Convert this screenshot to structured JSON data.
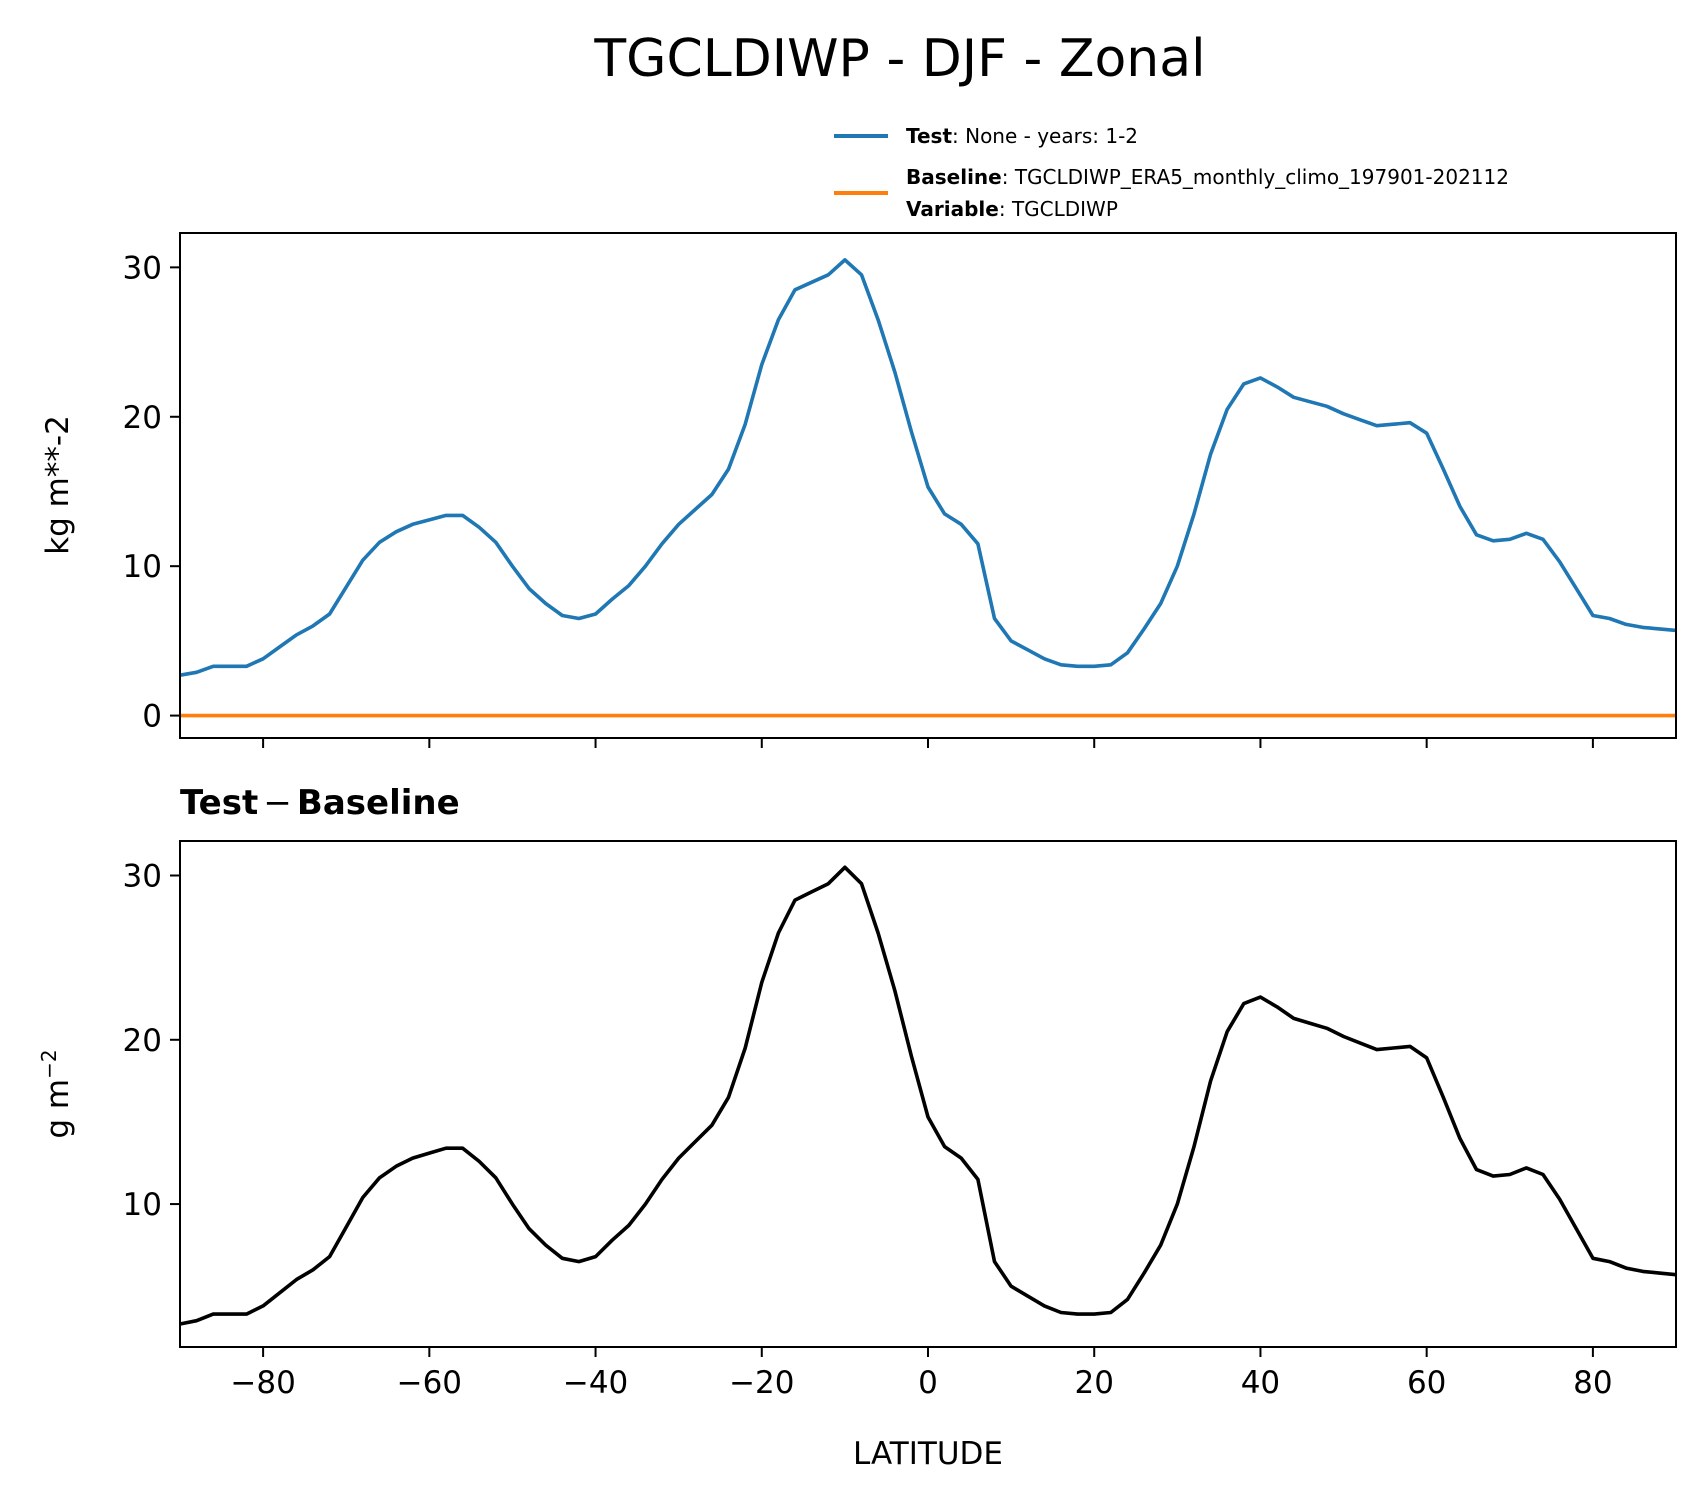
{
  "figure": {
    "title": "TGCLDIWP - DJF - Zonal",
    "legend": [
      {
        "bold": "Test",
        "rest": ": None - years: 1-2",
        "color": "#1f77b4"
      },
      {
        "bold": "Baseline",
        "rest": ": TGCLDIWP_ERA5_monthly_climo_197901-202112",
        "bold2": "Variable",
        "rest2": ": TGCLDIWP",
        "color": "#ff7f0e"
      }
    ],
    "top_ylabel": "kg m**-2",
    "bottom_title_left": "Test",
    "bottom_title_sep": "−",
    "bottom_title_right": "Baseline",
    "bottom_ylabel": "g m",
    "bottom_ylabel_sup": "−2",
    "xlabel": "LATITUDE"
  },
  "chart_data": [
    {
      "type": "line",
      "title": "TGCLDIWP - DJF - Zonal",
      "ylabel": "kg m**-2",
      "xlim": [
        -90,
        90
      ],
      "ylim": [
        -1.5,
        32.3
      ],
      "xticks": [
        -80,
        -60,
        -40,
        -20,
        0,
        20,
        40,
        60,
        80
      ],
      "yticks": [
        0,
        10,
        20,
        30
      ],
      "legend_position": "above plot, right",
      "series": [
        {
          "name": "Test",
          "color": "#1f77b4",
          "x": [
            -90,
            -88,
            -86,
            -84,
            -82,
            -80,
            -78,
            -76,
            -74,
            -72,
            -70,
            -68,
            -66,
            -64,
            -62,
            -60,
            -58,
            -56,
            -54,
            -52,
            -50,
            -48,
            -46,
            -44,
            -42,
            -40,
            -38,
            -36,
            -34,
            -32,
            -30,
            -28,
            -26,
            -24,
            -22,
            -20,
            -18,
            -16,
            -14,
            -12,
            -10,
            -8,
            -6,
            -4,
            -2,
            0,
            2,
            4,
            6,
            8,
            10,
            12,
            14,
            16,
            18,
            20,
            22,
            24,
            26,
            28,
            30,
            32,
            34,
            36,
            38,
            40,
            42,
            44,
            46,
            48,
            50,
            52,
            54,
            56,
            58,
            60,
            62,
            64,
            66,
            68,
            70,
            72,
            74,
            76,
            78,
            80,
            82,
            84,
            86,
            88,
            90
          ],
          "values": [
            2.7,
            2.9,
            3.3,
            3.3,
            3.3,
            3.8,
            4.6,
            5.4,
            6.0,
            6.8,
            8.6,
            10.4,
            11.6,
            12.3,
            12.8,
            13.1,
            13.4,
            13.4,
            12.6,
            11.6,
            10.0,
            8.5,
            7.5,
            6.7,
            6.5,
            6.8,
            7.8,
            8.7,
            10.0,
            11.5,
            12.8,
            13.8,
            14.8,
            16.5,
            19.5,
            23.5,
            26.5,
            28.5,
            29.0,
            29.5,
            30.5,
            29.5,
            26.5,
            23.0,
            19.0,
            15.3,
            13.5,
            12.8,
            11.5,
            6.5,
            5.0,
            4.4,
            3.8,
            3.4,
            3.3,
            3.3,
            3.4,
            4.2,
            5.8,
            7.5,
            10.0,
            13.5,
            17.5,
            20.5,
            22.2,
            22.6,
            22.0,
            21.3,
            21.0,
            20.7,
            20.2,
            19.8,
            19.4,
            19.5,
            19.6,
            18.9,
            16.5,
            14.0,
            12.1,
            11.7,
            11.8,
            12.2,
            11.8,
            10.3,
            8.5,
            6.7,
            6.5,
            6.1,
            5.9,
            5.8,
            5.7
          ]
        },
        {
          "name": "Baseline",
          "color": "#ff7f0e",
          "x": [
            -90,
            90
          ],
          "values": [
            0.0,
            0.0
          ]
        }
      ]
    },
    {
      "type": "line",
      "title": "Test − Baseline",
      "xlabel": "LATITUDE",
      "ylabel": "g m−2",
      "xlim": [
        -90,
        90
      ],
      "ylim": [
        1.3,
        32.1
      ],
      "xticks": [
        -80,
        -60,
        -40,
        -20,
        0,
        20,
        40,
        60,
        80
      ],
      "yticks": [
        10,
        20,
        30
      ],
      "series": [
        {
          "color": "#000000",
          "x": [
            -90,
            -88,
            -86,
            -84,
            -82,
            -80,
            -78,
            -76,
            -74,
            -72,
            -70,
            -68,
            -66,
            -64,
            -62,
            -60,
            -58,
            -56,
            -54,
            -52,
            -50,
            -48,
            -46,
            -44,
            -42,
            -40,
            -38,
            -36,
            -34,
            -32,
            -30,
            -28,
            -26,
            -24,
            -22,
            -20,
            -18,
            -16,
            -14,
            -12,
            -10,
            -8,
            -6,
            -4,
            -2,
            0,
            2,
            4,
            6,
            8,
            10,
            12,
            14,
            16,
            18,
            20,
            22,
            24,
            26,
            28,
            30,
            32,
            34,
            36,
            38,
            40,
            42,
            44,
            46,
            48,
            50,
            52,
            54,
            56,
            58,
            60,
            62,
            64,
            66,
            68,
            70,
            72,
            74,
            76,
            78,
            80,
            82,
            84,
            86,
            88,
            90
          ],
          "values": [
            2.7,
            2.9,
            3.3,
            3.3,
            3.3,
            3.8,
            4.6,
            5.4,
            6.0,
            6.8,
            8.6,
            10.4,
            11.6,
            12.3,
            12.8,
            13.1,
            13.4,
            13.4,
            12.6,
            11.6,
            10.0,
            8.5,
            7.5,
            6.7,
            6.5,
            6.8,
            7.8,
            8.7,
            10.0,
            11.5,
            12.8,
            13.8,
            14.8,
            16.5,
            19.5,
            23.5,
            26.5,
            28.5,
            29.0,
            29.5,
            30.5,
            29.5,
            26.5,
            23.0,
            19.0,
            15.3,
            13.5,
            12.8,
            11.5,
            6.5,
            5.0,
            4.4,
            3.8,
            3.4,
            3.3,
            3.3,
            3.4,
            4.2,
            5.8,
            7.5,
            10.0,
            13.5,
            17.5,
            20.5,
            22.2,
            22.6,
            22.0,
            21.3,
            21.0,
            20.7,
            20.2,
            19.8,
            19.4,
            19.5,
            19.6,
            18.9,
            16.5,
            14.0,
            12.1,
            11.7,
            11.8,
            12.2,
            11.8,
            10.3,
            8.5,
            6.7,
            6.5,
            6.1,
            5.9,
            5.8,
            5.7
          ]
        }
      ]
    }
  ]
}
